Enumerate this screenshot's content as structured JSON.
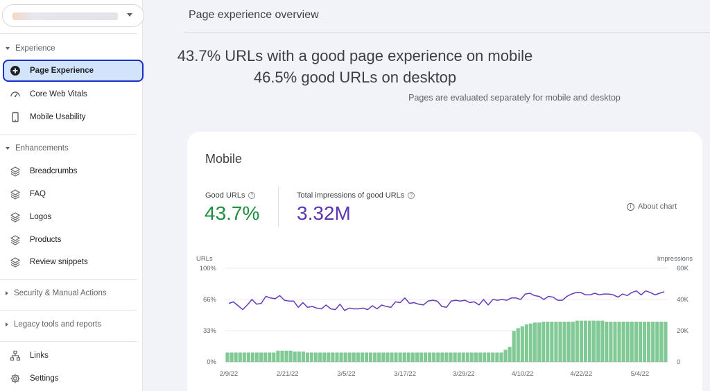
{
  "sidebar": {
    "property": {
      "value": ""
    },
    "sections": {
      "experience": "Experience",
      "enhancements": "Enhancements",
      "security": "Security & Manual Actions",
      "legacy": "Legacy tools and reports"
    },
    "items": {
      "page_experience": "Page Experience",
      "core_web_vitals": "Core Web Vitals",
      "mobile_usability": "Mobile Usability",
      "breadcrumbs": "Breadcrumbs",
      "faq": "FAQ",
      "logos": "Logos",
      "products": "Products",
      "review_snippets": "Review snippets",
      "links": "Links",
      "settings": "Settings"
    }
  },
  "main": {
    "title": "Page experience overview",
    "headline_mobile": "43.7% URLs with a good page experience on mobile",
    "headline_desktop": "46.5% good URLs on desktop",
    "subline": "Pages are evaluated separately for mobile and desktop"
  },
  "card": {
    "title": "Mobile",
    "good_urls_label": "Good URLs",
    "good_urls_value": "43.7%",
    "impressions_label": "Total impressions of good URLs",
    "impressions_value": "3.32M",
    "about_chart": "About chart"
  },
  "colors": {
    "good_green": "#1e8e3e",
    "impressions_purple": "#5e35b1",
    "bar_green": "#81c995",
    "line_purple": "#673ab7",
    "active_bg": "#d2e3fc",
    "active_border": "#1a2ec9"
  },
  "chart_data": {
    "type": "bar+line",
    "left_axis_label": "URLs",
    "right_axis_label": "Impressions",
    "left_ticks": [
      "100%",
      "66%",
      "33%",
      "0%"
    ],
    "right_ticks": [
      "60K",
      "40K",
      "20K",
      "0"
    ],
    "x_tick_labels": [
      "2/9/22",
      "2/21/22",
      "3/5/22",
      "3/17/22",
      "3/29/22",
      "4/10/22",
      "4/22/22",
      "5/4/22"
    ],
    "ylim_left": [
      0,
      100
    ],
    "ylim_right": [
      0,
      60000
    ],
    "series": [
      {
        "name": "Good URLs (%)",
        "kind": "bar",
        "axis": "left",
        "values": [
          10,
          10,
          10,
          10,
          10,
          10,
          10,
          10,
          10,
          10,
          10,
          10,
          12,
          12,
          12,
          12,
          11,
          11,
          11,
          10,
          10,
          10,
          10,
          10,
          10,
          10,
          10,
          10,
          10,
          10,
          10,
          10,
          10,
          10,
          10,
          10,
          10,
          10,
          10,
          10,
          10,
          10,
          10,
          10,
          10,
          10,
          10,
          10,
          10,
          10,
          10,
          10,
          10,
          10,
          10,
          10,
          10,
          10,
          10,
          10,
          10,
          10,
          10,
          10,
          10,
          10,
          13,
          16,
          33,
          36,
          38,
          40,
          41,
          42,
          42,
          43,
          43,
          43,
          43,
          43,
          43,
          43,
          43,
          44,
          44,
          44,
          44,
          44,
          44,
          44,
          43,
          43,
          43,
          43,
          43,
          43,
          43,
          43,
          43,
          43,
          43,
          43,
          43,
          43,
          43
        ]
      },
      {
        "name": "Impressions of good URLs",
        "kind": "line",
        "axis": "right",
        "values": [
          37500,
          38500,
          36000,
          33500,
          36500,
          40000,
          37000,
          37500,
          42000,
          41000,
          40500,
          42500,
          39500,
          39000,
          39000,
          35000,
          38000,
          35000,
          35500,
          34500,
          34000,
          36500,
          34000,
          33500,
          37000,
          33000,
          34500,
          34000,
          34000,
          34500,
          33500,
          36000,
          34000,
          36500,
          35500,
          35000,
          38500,
          38000,
          41000,
          37500,
          38000,
          37000,
          36500,
          39000,
          39500,
          39000,
          35500,
          35000,
          39000,
          39500,
          39000,
          39500,
          38000,
          38500,
          36500,
          40000,
          36500,
          40000,
          39500,
          40000,
          39500,
          41000,
          41000,
          40000,
          43500,
          44000,
          42500,
          42000,
          40000,
          42000,
          41500,
          39500,
          39500,
          42000,
          43500,
          44500,
          44500,
          43000,
          43000,
          44000,
          43000,
          43500,
          43500,
          43000,
          41500,
          43500,
          42500,
          44500,
          45500,
          43000,
          45500,
          44500,
          43000,
          44000,
          45000
        ],
        "note": "Right-axis values approximated from the plotted line"
      }
    ]
  }
}
